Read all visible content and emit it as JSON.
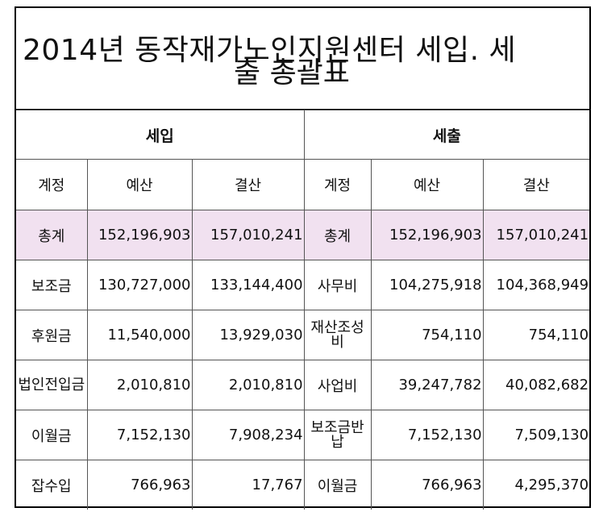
{
  "title_line1": "2014년 동작재가노인지원센터 세입. 세",
  "title_line2": "출 총괄표",
  "sections": {
    "income": "세입",
    "expense": "세출"
  },
  "columns": {
    "income": [
      "계정",
      "예산",
      "결산"
    ],
    "expense": [
      "계정",
      "예산",
      "결산"
    ]
  },
  "rows": [
    {
      "in_acct": "총계",
      "in_budget": "152,196,903",
      "in_settle": "157,010,241",
      "ex_acct": "총계",
      "ex_budget": "152,196,903",
      "ex_settle": "157,010,241"
    },
    {
      "in_acct": "보조금",
      "in_budget": "130,727,000",
      "in_settle": "133,144,400",
      "ex_acct": "사무비",
      "ex_budget": "104,275,918",
      "ex_settle": "104,368,949"
    },
    {
      "in_acct": "후원금",
      "in_budget": "11,540,000",
      "in_settle": "13,929,030",
      "ex_acct": "재산조성비",
      "ex_budget": "754,110",
      "ex_settle": "754,110"
    },
    {
      "in_acct": "법인전입금",
      "in_budget": "2,010,810",
      "in_settle": "2,010,810",
      "ex_acct": "사업비",
      "ex_budget": "39,247,782",
      "ex_settle": "40,082,682"
    },
    {
      "in_acct": "이월금",
      "in_budget": "7,152,130",
      "in_settle": "7,908,234",
      "ex_acct": "보조금반납",
      "ex_budget": "7,152,130",
      "ex_settle": "7,509,130"
    },
    {
      "in_acct": "잡수입",
      "in_budget": "766,963",
      "in_settle": "17,767",
      "ex_acct": "이월금",
      "ex_budget": "766,963",
      "ex_settle": "4,295,370"
    }
  ]
}
